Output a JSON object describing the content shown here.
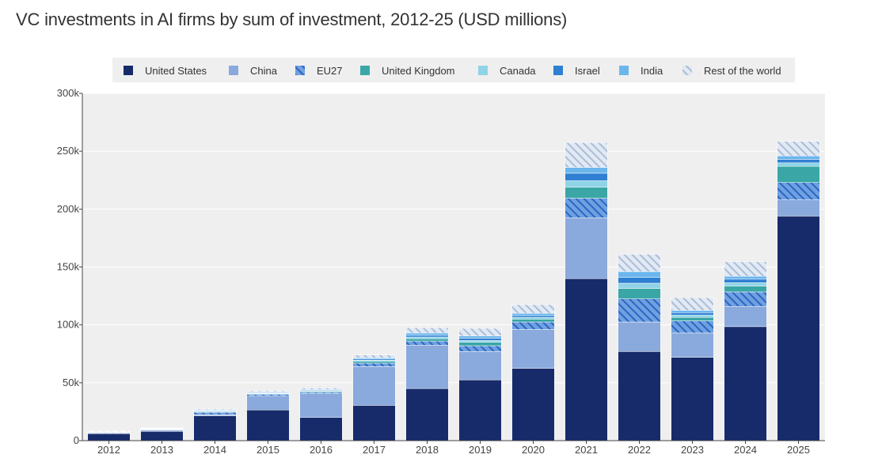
{
  "chart_data": {
    "type": "bar",
    "stacked": true,
    "title": "VC investments in AI firms by sum of investment, 2012-25 (USD millions)",
    "xlabel": "",
    "ylabel": "",
    "ylim": [
      0,
      300000
    ],
    "yticks": [
      0,
      50000,
      100000,
      150000,
      200000,
      250000,
      300000
    ],
    "ytick_labels": [
      "0",
      "50k",
      "100k",
      "150k",
      "200k",
      "250k",
      "300k"
    ],
    "legend_position": "top",
    "categories": [
      "2012",
      "2013",
      "2014",
      "2015",
      "2016",
      "2017",
      "2018",
      "2019",
      "2020",
      "2021",
      "2022",
      "2023",
      "2024",
      "2025"
    ],
    "series": [
      {
        "name": "United States",
        "color": "#172b6b",
        "pattern": "solid",
        "values": [
          6000,
          8000,
          21500,
          26500,
          20000,
          30500,
          45000,
          52500,
          62500,
          140000,
          77000,
          72000,
          98500,
          194000
        ]
      },
      {
        "name": "China",
        "color": "#8aa9dc",
        "pattern": "solid",
        "values": [
          500,
          1000,
          1000,
          12000,
          20500,
          33500,
          37500,
          24500,
          33500,
          52500,
          25500,
          21000,
          17500,
          14000
        ]
      },
      {
        "name": "EU27",
        "color": "#2c66c2",
        "pattern": "hatch",
        "values": [
          500,
          500,
          2000,
          1500,
          1200,
          3000,
          3500,
          5000,
          6500,
          17000,
          20000,
          10500,
          12500,
          15000
        ]
      },
      {
        "name": "United Kingdom",
        "color": "#3aa6a6",
        "pattern": "solid",
        "values": [
          200,
          300,
          500,
          500,
          800,
          1500,
          2000,
          3000,
          2500,
          9500,
          9000,
          3000,
          5000,
          14000
        ]
      },
      {
        "name": "Canada",
        "color": "#8fd3e6",
        "pattern": "solid",
        "values": [
          200,
          300,
          500,
          500,
          500,
          1000,
          1500,
          1500,
          1500,
          5500,
          4500,
          2000,
          3000,
          3000
        ]
      },
      {
        "name": "Israel",
        "color": "#2f7fd3",
        "pattern": "solid",
        "values": [
          200,
          300,
          500,
          500,
          600,
          1000,
          1500,
          2000,
          1500,
          6500,
          5000,
          2000,
          3000,
          3000
        ]
      },
      {
        "name": "India",
        "color": "#6bb6ec",
        "pattern": "solid",
        "values": [
          200,
          300,
          500,
          500,
          500,
          1000,
          2000,
          2000,
          2000,
          5000,
          5000,
          2000,
          2500,
          3000
        ]
      },
      {
        "name": "Rest of the world",
        "color": "#a9bdd9",
        "pattern": "hatch",
        "values": [
          500,
          500,
          800,
          1000,
          1400,
          2500,
          4500,
          6500,
          7500,
          21500,
          15000,
          11000,
          12500,
          12500
        ]
      }
    ]
  }
}
